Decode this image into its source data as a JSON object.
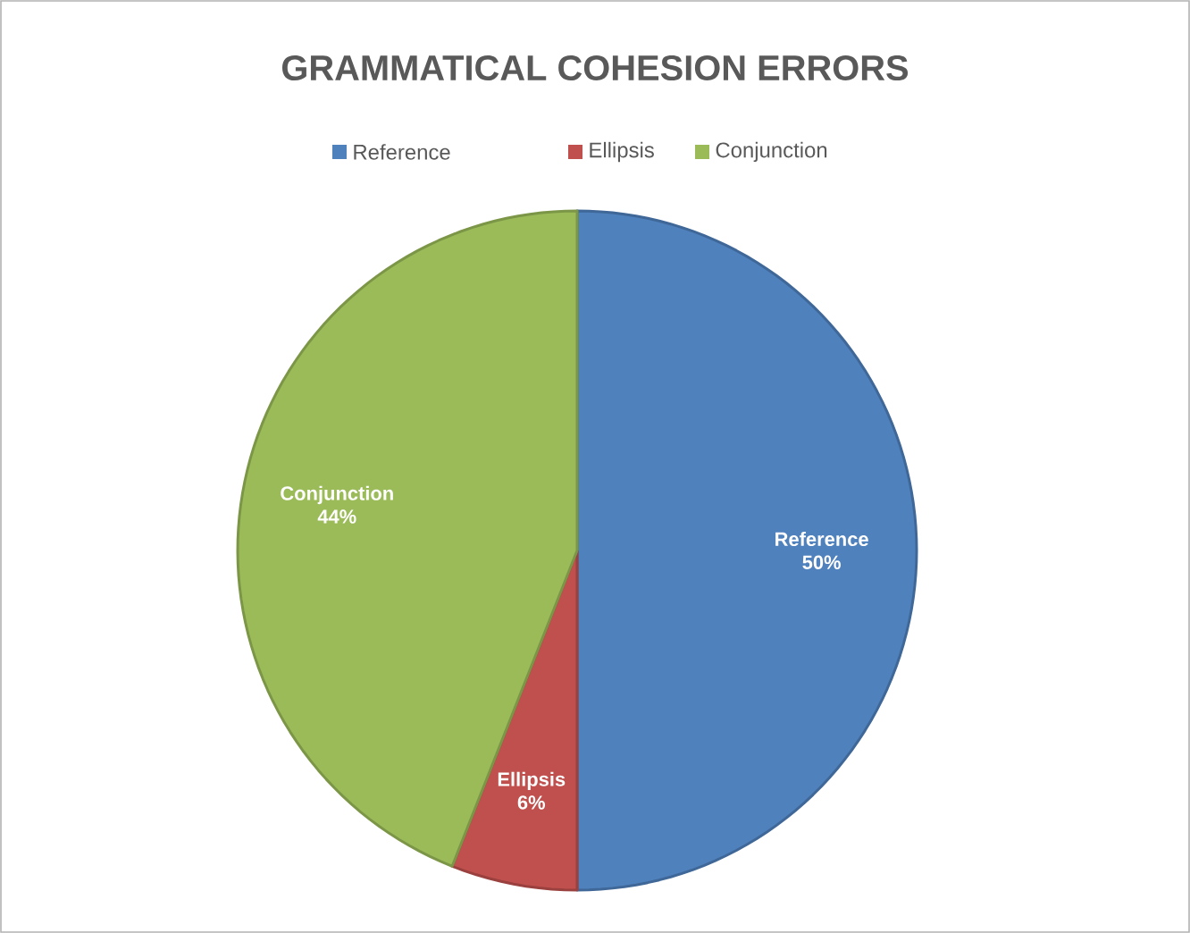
{
  "chart_data": {
    "type": "pie",
    "title": "GRAMMATICAL COHESION ERRORS",
    "categories": [
      "Reference",
      "Ellipsis",
      "Conjunction"
    ],
    "values": [
      50,
      6,
      44
    ],
    "value_labels": [
      "50%",
      "6%",
      "44%"
    ],
    "colors": [
      "#4f81bd",
      "#c0504d",
      "#9bbb59"
    ],
    "legend": "top"
  }
}
